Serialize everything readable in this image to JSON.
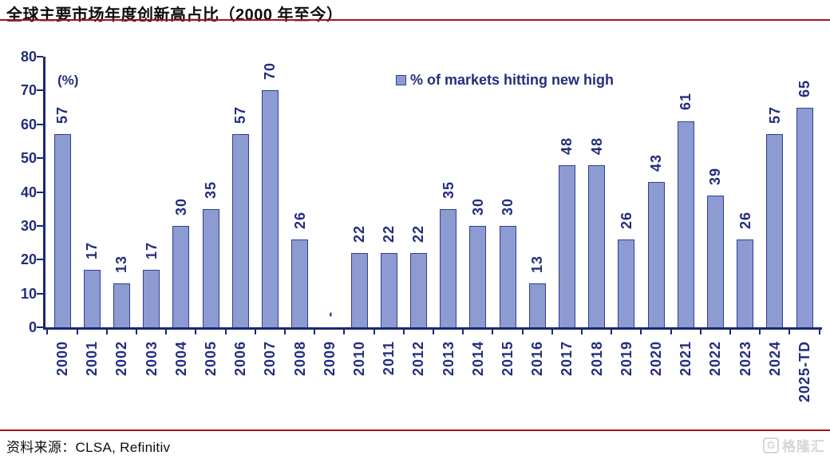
{
  "page": {
    "title": "全球主要市场年度创新高占比（2000 年至今）",
    "source": "资料来源：CLSA, Refinitiv",
    "watermark_logo": "G",
    "watermark_text": "格隆汇"
  },
  "colors": {
    "navy_text": "#232d7e",
    "axis_navy": "#1d2775",
    "bar_fill": "#8c9cd2",
    "bar_border": "#333d90",
    "accent_red": "#a31417",
    "watermark_gray": "#d6d6d6"
  },
  "chart_data": {
    "type": "bar",
    "title": "全球主要市场年度创新高占比（2000 年至今）",
    "legend": "% of markets hitting new high",
    "unit_label": "(%)",
    "xlabel": "",
    "ylabel": "(%)",
    "ylim": [
      0,
      80
    ],
    "yticks": [
      0,
      10,
      20,
      30,
      40,
      50,
      60,
      70,
      80
    ],
    "grid": false,
    "legend_position": "top",
    "categories": [
      "2000",
      "2001",
      "2002",
      "2003",
      "2004",
      "2005",
      "2006",
      "2007",
      "2008",
      "2009",
      "2010",
      "2011",
      "2012",
      "2013",
      "2014",
      "2015",
      "2016",
      "2017",
      "2018",
      "2019",
      "2020",
      "2021",
      "2022",
      "2023",
      "2024",
      "2025-TD"
    ],
    "values": [
      57,
      17,
      13,
      17,
      30,
      35,
      57,
      70,
      26,
      0,
      22,
      22,
      22,
      35,
      30,
      30,
      13,
      48,
      48,
      26,
      43,
      61,
      39,
      26,
      57,
      65
    ],
    "value_labels": [
      "57",
      "17",
      "13",
      "17",
      "30",
      "35",
      "57",
      "70",
      "26",
      "-",
      "22",
      "22",
      "22",
      "35",
      "30",
      "30",
      "13",
      "48",
      "48",
      "26",
      "43",
      "61",
      "39",
      "26",
      "57",
      "65"
    ]
  }
}
